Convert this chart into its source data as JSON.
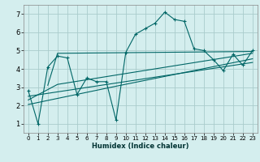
{
  "xlabel": "Humidex (Indice chaleur)",
  "bg_color": "#d4eeee",
  "line_color": "#006666",
  "grid_color": "#aacccc",
  "xlim": [
    -0.5,
    23.5
  ],
  "ylim": [
    0.5,
    7.5
  ],
  "xticks": [
    0,
    1,
    2,
    3,
    4,
    5,
    6,
    7,
    8,
    9,
    10,
    11,
    12,
    13,
    14,
    15,
    16,
    17,
    18,
    19,
    20,
    21,
    22,
    23
  ],
  "yticks": [
    1,
    2,
    3,
    4,
    5,
    6,
    7
  ],
  "main_line_x": [
    0,
    1,
    2,
    3,
    4,
    5,
    6,
    7,
    8,
    9,
    10,
    11,
    12,
    13,
    14,
    15,
    16,
    17,
    18,
    19,
    20,
    21,
    22,
    23
  ],
  "main_line_y": [
    2.8,
    1.0,
    4.1,
    4.7,
    4.6,
    2.6,
    3.5,
    3.3,
    3.3,
    1.2,
    4.9,
    5.9,
    6.2,
    6.5,
    7.1,
    6.7,
    6.6,
    5.1,
    5.0,
    4.5,
    3.9,
    4.8,
    4.2,
    5.0
  ],
  "line1_x": [
    2,
    3,
    23
  ],
  "line1_y": [
    3.1,
    4.85,
    4.95
  ],
  "line2_x": [
    0,
    3,
    23
  ],
  "line2_y": [
    2.3,
    3.15,
    4.85
  ],
  "line3_x": [
    0,
    9,
    23
  ],
  "line3_y": [
    2.05,
    3.05,
    4.55
  ],
  "line4_x": [
    0,
    23
  ],
  "line4_y": [
    2.5,
    4.35
  ]
}
